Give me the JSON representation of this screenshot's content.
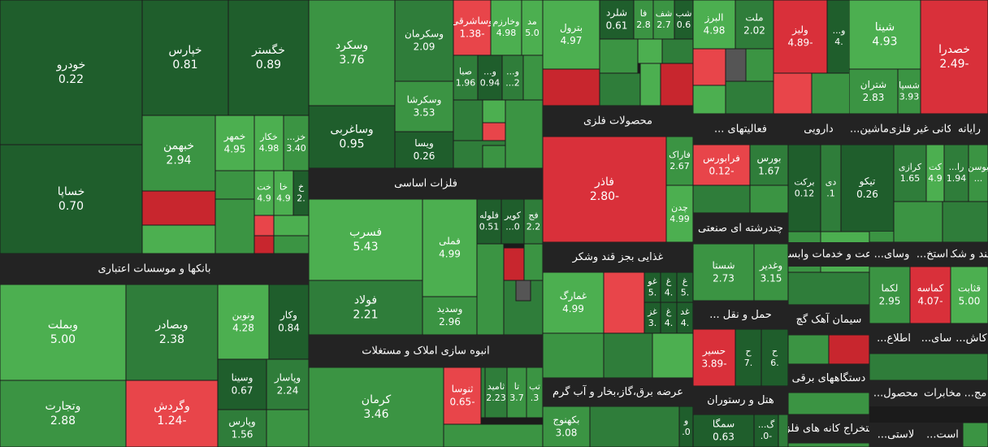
{
  "headers": [
    "بانکها و موسسات اعتباری",
    "فلزات اساسی",
    "انبوه سازی املاک و مستغلات",
    "محصولات فلزی",
    "غذایی بجز قند وشکر",
    "عرضه برق،گاز،بخار و آب گرم",
    "فعالیتهای ...",
    "دارویی",
    "ماشین...",
    "کانی غیر فلزی",
    "رایانه",
    "چندرشته ای صنعتی",
    "حمل و نقل ...",
    "هتل و رستوران",
    "راعت و خدمات وابست",
    "وسای...",
    "استخ...",
    "قند و شکر",
    "سیمان آهک گچ",
    "اطلاع...",
    "سای...",
    "کاش...",
    "دستگاههای برقی",
    "محصول...",
    "مخابرات",
    "مج...",
    "استخراج کانه های فلزی",
    "لاستی...",
    "است..."
  ],
  "tiles": [
    {
      "name": "خودرو",
      "value": "0.22"
    },
    {
      "name": "خساپا",
      "value": "0.70"
    },
    {
      "name": "خپارس",
      "value": "0.81"
    },
    {
      "name": "خگستر",
      "value": "0.89"
    },
    {
      "name": "خبهمن",
      "value": "2.94"
    },
    {
      "name": "خمهر",
      "value": "4.95"
    },
    {
      "name": "خکار",
      "value": "4.98"
    },
    {
      "name": "خز...",
      "value": "3.40"
    },
    {
      "name": "خت",
      "value": "4.9"
    },
    {
      "name": "خا",
      "value": "4.9"
    },
    {
      "name": "خ",
      "value": ".2"
    },
    {
      "name": "وبملت",
      "value": "5.00"
    },
    {
      "name": "وتجارت",
      "value": "2.88"
    },
    {
      "name": "وبصادر",
      "value": "2.38"
    },
    {
      "name": "وگردش",
      "value": "-1.24"
    },
    {
      "name": "ونوین",
      "value": "4.28"
    },
    {
      "name": "وکار",
      "value": "0.84"
    },
    {
      "name": "وسینا",
      "value": "0.67"
    },
    {
      "name": "وپاسار",
      "value": "2.24"
    },
    {
      "name": "وپارس",
      "value": "1.56"
    },
    {
      "name": "وسکرد",
      "value": "3.76"
    },
    {
      "name": "وساغربی",
      "value": "0.95"
    },
    {
      "name": "وسکرمان",
      "value": "2.09"
    },
    {
      "name": "وسکرشا",
      "value": "3.53"
    },
    {
      "name": "ویسا",
      "value": "0.26"
    },
    {
      "name": "وساشرقی",
      "value": "-1.38"
    },
    {
      "name": "وخارزم",
      "value": "4.98"
    },
    {
      "name": "مد",
      "value": "5.0"
    },
    {
      "name": "صبا",
      "value": "1.96"
    },
    {
      "name": "و...",
      "value": "0.94"
    },
    {
      "name": "و...",
      "value": "2..."
    },
    {
      "name": "فسرب",
      "value": "5.43"
    },
    {
      "name": "فولاد",
      "value": "2.21"
    },
    {
      "name": "فملی",
      "value": "4.99"
    },
    {
      "name": "وسدید",
      "value": "2.96"
    },
    {
      "name": "فلوله",
      "value": "0.51"
    },
    {
      "name": "کویر",
      "value": "0..."
    },
    {
      "name": "فج",
      "value": "2.2"
    },
    {
      "name": "کرمان",
      "value": "3.46"
    },
    {
      "name": "ثنوسا",
      "value": "-0.65"
    },
    {
      "name": "ثامید",
      "value": "2.23"
    },
    {
      "name": "تا",
      "value": "3.7"
    },
    {
      "name": "تب",
      "value": "3."
    },
    {
      "name": "بترول",
      "value": "4.97"
    },
    {
      "name": "شلرد",
      "value": "0.61"
    },
    {
      "name": "فا",
      "value": "2.8"
    },
    {
      "name": "شف",
      "value": "2.7"
    },
    {
      "name": "شب",
      "value": "0.6"
    },
    {
      "name": "فاذر",
      "value": "-2.80"
    },
    {
      "name": "فاراک",
      "value": "2.67"
    },
    {
      "name": "چدن",
      "value": "4.99"
    },
    {
      "name": "غمارگ",
      "value": "4.99"
    },
    {
      "name": "غو",
      "value": ".5"
    },
    {
      "name": "غ",
      "value": ".4"
    },
    {
      "name": "غ",
      "value": ".5"
    },
    {
      "name": "غز",
      "value": ".3"
    },
    {
      "name": "غ",
      "value": ".4"
    },
    {
      "name": "غد",
      "value": ".4"
    },
    {
      "name": "بکهنوج",
      "value": "3.08"
    },
    {
      "name": "و",
      "value": "0."
    },
    {
      "name": "البرز",
      "value": "4.98"
    },
    {
      "name": "ملت",
      "value": "2.02"
    },
    {
      "name": "ولیز",
      "value": "-4.89"
    },
    {
      "name": "و...",
      "value": ".4"
    },
    {
      "name": "فرابورس",
      "value": "-0.12"
    },
    {
      "name": "بورس",
      "value": "1.67"
    },
    {
      "name": "شستا",
      "value": "2.73"
    },
    {
      "name": "وغدیر",
      "value": "3.15"
    },
    {
      "name": "حسیر",
      "value": "-3.89"
    },
    {
      "name": "ح",
      "value": ".7"
    },
    {
      "name": "ح",
      "value": ".6"
    },
    {
      "name": "سمگا",
      "value": "0.63"
    },
    {
      "name": "گ...",
      "value": "-0."
    },
    {
      "name": "برکت",
      "value": "0.12"
    },
    {
      "name": "دی",
      "value": "1."
    },
    {
      "name": "تیکو",
      "value": "0.26"
    },
    {
      "name": "شینا",
      "value": "4.93"
    },
    {
      "name": "شتران",
      "value": "2.83"
    },
    {
      "name": "شسپا",
      "value": "3.93"
    },
    {
      "name": "خصدرا",
      "value": "-2.49"
    },
    {
      "name": "کرازی",
      "value": "1.65"
    },
    {
      "name": "کت",
      "value": "4.9"
    },
    {
      "name": "را...",
      "value": "1.94"
    },
    {
      "name": "بوسن",
      "value": "..."
    },
    {
      "name": "لکما",
      "value": "2.95"
    },
    {
      "name": "کماسه",
      "value": "-4.07"
    },
    {
      "name": "قثابت",
      "value": "5.00"
    }
  ]
}
